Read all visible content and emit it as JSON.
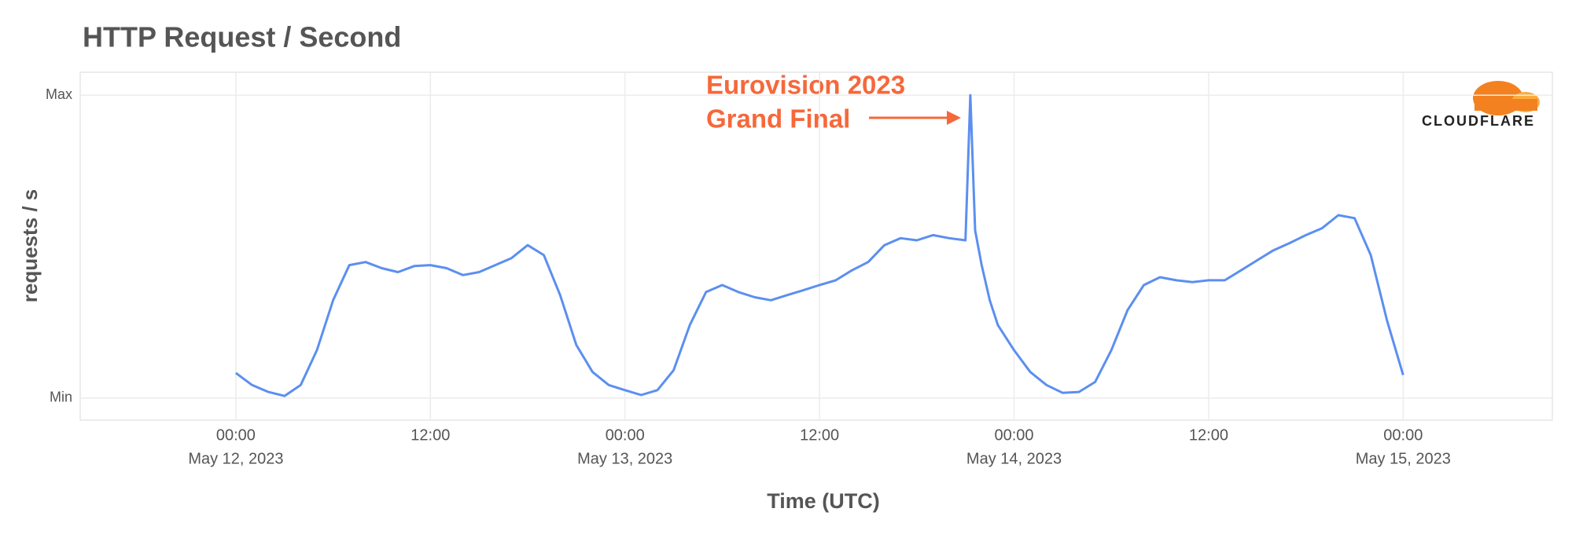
{
  "chart_data": {
    "type": "line",
    "title": "HTTP Request / Second",
    "y_label": "requests / s",
    "x_label": "Time (UTC)",
    "annotation": [
      "Eurovision 2023",
      "Grand Final"
    ],
    "logo": "CLOUDFLARE",
    "color": "#5b8ff0",
    "grid": true,
    "x": [
      "2023-05-12T00:00",
      "2023-05-12T01:00",
      "2023-05-12T02:00",
      "2023-05-12T03:00",
      "2023-05-12T04:00",
      "2023-05-12T05:00",
      "2023-05-12T06:00",
      "2023-05-12T07:00",
      "2023-05-12T08:00",
      "2023-05-12T09:00",
      "2023-05-12T10:00",
      "2023-05-12T11:00",
      "2023-05-12T12:00",
      "2023-05-12T13:00",
      "2023-05-12T14:00",
      "2023-05-12T15:00",
      "2023-05-12T16:00",
      "2023-05-12T17:00",
      "2023-05-12T18:00",
      "2023-05-12T19:00",
      "2023-05-12T20:00",
      "2023-05-12T21:00",
      "2023-05-12T22:00",
      "2023-05-12T23:00",
      "2023-05-13T00:00",
      "2023-05-13T01:00",
      "2023-05-13T02:00",
      "2023-05-13T03:00",
      "2023-05-13T04:00",
      "2023-05-13T05:00",
      "2023-05-13T06:00",
      "2023-05-13T07:00",
      "2023-05-13T08:00",
      "2023-05-13T09:00",
      "2023-05-13T10:00",
      "2023-05-13T11:00",
      "2023-05-13T12:00",
      "2023-05-13T13:00",
      "2023-05-13T14:00",
      "2023-05-13T15:00",
      "2023-05-13T16:00",
      "2023-05-13T17:00",
      "2023-05-13T18:00",
      "2023-05-13T19:00",
      "2023-05-13T20:00",
      "2023-05-13T21:00",
      "2023-05-13T21:18",
      "2023-05-13T21:36",
      "2023-05-13T22:00",
      "2023-05-13T22:30",
      "2023-05-13T23:00",
      "2023-05-14T00:00",
      "2023-05-14T01:00",
      "2023-05-14T02:00",
      "2023-05-14T03:00",
      "2023-05-14T04:00",
      "2023-05-14T05:00",
      "2023-05-14T06:00",
      "2023-05-14T07:00",
      "2023-05-14T08:00",
      "2023-05-14T09:00",
      "2023-05-14T10:00",
      "2023-05-14T11:00",
      "2023-05-14T12:00",
      "2023-05-14T13:00",
      "2023-05-14T14:00",
      "2023-05-14T15:00",
      "2023-05-14T16:00",
      "2023-05-14T17:00",
      "2023-05-14T18:00",
      "2023-05-14T19:00",
      "2023-05-14T20:00",
      "2023-05-14T21:00",
      "2023-05-14T22:00",
      "2023-05-14T23:00",
      "2023-05-15T00:00"
    ],
    "values": [
      0.083,
      0.043,
      0.02,
      0.007,
      0.043,
      0.158,
      0.323,
      0.439,
      0.449,
      0.429,
      0.416,
      0.436,
      0.439,
      0.429,
      0.406,
      0.416,
      0.439,
      0.462,
      0.505,
      0.472,
      0.34,
      0.175,
      0.086,
      0.043,
      0.026,
      0.01,
      0.026,
      0.092,
      0.241,
      0.35,
      0.373,
      0.35,
      0.333,
      0.323,
      0.34,
      0.356,
      0.373,
      0.389,
      0.422,
      0.449,
      0.505,
      0.528,
      0.521,
      0.538,
      0.528,
      0.521,
      1.0,
      0.554,
      0.439,
      0.323,
      0.241,
      0.158,
      0.086,
      0.043,
      0.017,
      0.02,
      0.053,
      0.158,
      0.29,
      0.373,
      0.399,
      0.389,
      0.383,
      0.389,
      0.389,
      0.422,
      0.455,
      0.488,
      0.512,
      0.538,
      0.561,
      0.604,
      0.594,
      0.472,
      0.257,
      0.076
    ],
    "xlim": [
      "2023-05-11T14:24",
      "2023-05-15T09:12"
    ],
    "xticks": [
      {
        "value": "2023-05-12T00:00",
        "label": [
          "00:00",
          "May 12, 2023"
        ]
      },
      {
        "value": "2023-05-12T12:00",
        "label": [
          "12:00"
        ]
      },
      {
        "value": "2023-05-13T00:00",
        "label": [
          "00:00",
          "May 13, 2023"
        ]
      },
      {
        "value": "2023-05-13T12:00",
        "label": [
          "12:00"
        ]
      },
      {
        "value": "2023-05-14T00:00",
        "label": [
          "00:00",
          "May 14, 2023"
        ]
      },
      {
        "value": "2023-05-14T12:00",
        "label": [
          "12:00"
        ]
      },
      {
        "value": "2023-05-15T00:00",
        "label": [
          "00:00",
          "May 15, 2023"
        ]
      }
    ],
    "ylim": [
      -0.073,
      1.076
    ],
    "yticks": [
      {
        "value": 0,
        "label": "Min"
      },
      {
        "value": 1,
        "label": "Max"
      }
    ]
  }
}
